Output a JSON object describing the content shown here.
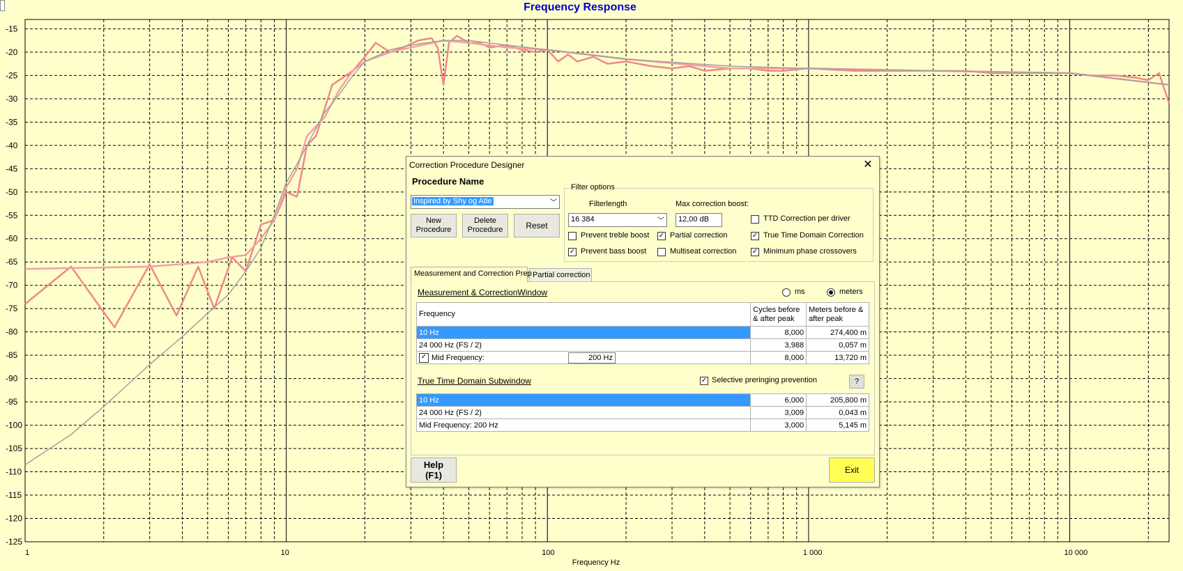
{
  "chart_data": {
    "type": "line",
    "title": "Frequency Response",
    "xlabel": "Frequency Hz",
    "ylabel": "",
    "x_scale": "log",
    "xlim": [
      1,
      24000
    ],
    "ylim": [
      -125,
      -13
    ],
    "x_ticks": [
      "1",
      "10",
      "100",
      "1 000",
      "10 000"
    ],
    "y_ticks": [
      "-15",
      "-20",
      "-25",
      "-30",
      "-35",
      "-40",
      "-45",
      "-50",
      "-55",
      "-60",
      "-65",
      "-70",
      "-75",
      "-80",
      "-85",
      "-90",
      "-95",
      "-100",
      "-105",
      "-110",
      "-115",
      "-120",
      "-125"
    ],
    "grid": true,
    "series": [
      {
        "color": "#f08888",
        "x": [
          1,
          1.5,
          2.2,
          3,
          3.8,
          4.6,
          5.3,
          6.2,
          7,
          8,
          9,
          10,
          11,
          12,
          13,
          15,
          18,
          20,
          22,
          25,
          28,
          32,
          36,
          38,
          40,
          42,
          45,
          50,
          55,
          60,
          70,
          80,
          90,
          100,
          110,
          120,
          130,
          150,
          170,
          200,
          250,
          300,
          350,
          400,
          500,
          600,
          700,
          800,
          1000,
          1500,
          2000,
          3000,
          4000,
          5000,
          6000,
          8000,
          10000,
          12000,
          15000,
          18000,
          20000,
          22000,
          24000
        ],
        "y": [
          -74,
          -66,
          -79,
          -65.5,
          -76.5,
          -66,
          -75,
          -64,
          -67,
          -57,
          -56,
          -50,
          -51,
          -40,
          -38,
          -27,
          -24,
          -21,
          -18,
          -20,
          -19,
          -17.5,
          -17,
          -19,
          -27,
          -18,
          -16.5,
          -18,
          -18,
          -19,
          -18.5,
          -19.5,
          -20,
          -19.5,
          -22,
          -20.5,
          -22,
          -21,
          -22.5,
          -22,
          -23,
          -23.5,
          -23,
          -24,
          -23.5,
          -23.5,
          -24,
          -24,
          -23.5,
          -24,
          -24,
          -24,
          -24,
          -24.5,
          -24.5,
          -24.5,
          -24.5,
          -25,
          -25,
          -25.5,
          -26,
          -24.5,
          -31
        ]
      },
      {
        "color": "#f4a0a0",
        "x": [
          1,
          3,
          5,
          6,
          7,
          8,
          9,
          10,
          11,
          12,
          14,
          16,
          18,
          20,
          25,
          30,
          40,
          50,
          70,
          100,
          200,
          500,
          1000,
          3000,
          10000,
          24000
        ],
        "y": [
          -66.5,
          -66,
          -65,
          -64,
          -63.5,
          -60,
          -56,
          -49,
          -45,
          -38,
          -34,
          -28,
          -24,
          -22,
          -20,
          -19,
          -17.5,
          -18,
          -19,
          -19.5,
          -21.5,
          -23.5,
          -23.5,
          -24,
          -24.5,
          -27
        ]
      },
      {
        "color": "#a0a0a0",
        "x": [
          1,
          1.5,
          2,
          3,
          4,
          5,
          6,
          7,
          8,
          9,
          10,
          11,
          12,
          14,
          16,
          18,
          20,
          25,
          30,
          40,
          50,
          70,
          100,
          200,
          500,
          1000,
          3000,
          10000,
          24000
        ],
        "y": [
          -108.5,
          -102,
          -96,
          -87,
          -81,
          -76,
          -72,
          -67,
          -62,
          -55,
          -48,
          -44,
          -40,
          -33,
          -29,
          -25,
          -22,
          -19.5,
          -18.5,
          -17.5,
          -17.5,
          -18.5,
          -19.5,
          -21.5,
          -23,
          -23.5,
          -24,
          -24.5,
          -27
        ]
      }
    ]
  },
  "dialog": {
    "title": "Correction Procedure Designer",
    "close": "✕",
    "procedure_name_label": "Procedure Name",
    "procedure_selected": "Inspired by Shy og Atle",
    "buttons": {
      "new_line1": "New",
      "new_line2": "Procedure",
      "delete_line1": "Delete",
      "delete_line2": "Procedure",
      "reset": "Reset",
      "help_line1": "Help",
      "help_line2": "(F1)",
      "exit": "Exit",
      "question": "?"
    },
    "filter_options": {
      "group_label": "Filter options",
      "filterlength_label": "Filterlength",
      "filterlength_value": "16 384",
      "max_boost_label": "Max correction boost:",
      "max_boost_value": "12,00 dB",
      "checkboxes": {
        "prevent_treble_boost": {
          "label": "Prevent treble boost",
          "checked": false
        },
        "prevent_bass_boost": {
          "label": "Prevent bass boost",
          "checked": true
        },
        "partial_correction": {
          "label": "Partial correction",
          "checked": true
        },
        "multiseat_correction": {
          "label": "Multiseat correction",
          "checked": false
        },
        "ttd_per_driver": {
          "label": "TTD Correction per driver",
          "checked": false
        },
        "true_time_domain": {
          "label": "True Time Domain Correction",
          "checked": true
        },
        "min_phase_crossovers": {
          "label": "Minimum phase crossovers",
          "checked": true
        }
      }
    },
    "tabs": [
      "Measurement and Correction Prep",
      "Partial correction"
    ],
    "measurement": {
      "title": "Measurement & CorrectionWindow",
      "radio_ms": "ms",
      "radio_meters": "meters",
      "selected_unit": "meters",
      "headers": [
        "Frequency",
        "Cycles before & after peak",
        "Meters before & after peak"
      ],
      "rows": [
        {
          "freq": "10 Hz",
          "cycles": "8,000",
          "meters": "274,400 m"
        },
        {
          "freq": "24 000 Hz (FS / 2)",
          "cycles": "3,988",
          "meters": "0,057 m"
        },
        {
          "freq": "Mid Frequency:",
          "mid_value": "200 Hz",
          "cycles": "8,000",
          "meters": "13,720 m"
        }
      ]
    },
    "ttd": {
      "title": "True Time Domain Subwindow",
      "selective_label": "Selective preringing prevention",
      "selective_checked": true,
      "rows": [
        {
          "freq": "10 Hz",
          "cycles": "6,000",
          "meters": "205,800 m"
        },
        {
          "freq": "24 000 Hz (FS / 2)",
          "cycles": "3,009",
          "meters": "0,043 m"
        },
        {
          "freq": "Mid Frequency: 200 Hz",
          "cycles": "3,000",
          "meters": "5,145 m"
        }
      ]
    }
  }
}
